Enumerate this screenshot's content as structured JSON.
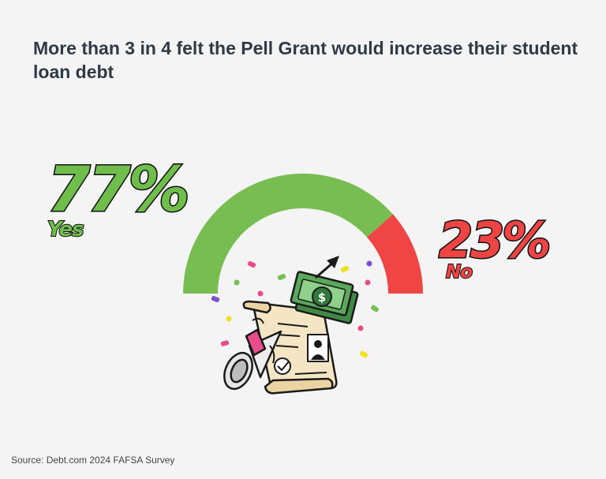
{
  "title": "More than 3 in 4 felt the Pell Grant would increase their student loan debt",
  "source": "Source: Debt.com 2024 FAFSA Survey",
  "colors": {
    "yes": "#77bd51",
    "no": "#f04545",
    "background": "#f4f4f4",
    "title": "#2f3a45"
  },
  "chart_data": {
    "type": "pie",
    "style": "half-donut-gauge",
    "categories": [
      "Yes",
      "No"
    ],
    "values": [
      77,
      23
    ],
    "labels": [
      "77%",
      "23%"
    ],
    "title": "More than 3 in 4 felt the Pell Grant would increase their student loan debt"
  },
  "illustration": {
    "icons": [
      "diploma-scroll-icon",
      "megaphone-icon",
      "money-bill-icon",
      "up-arrow-icon",
      "confetti-icon",
      "dollar-sign-icon"
    ]
  }
}
